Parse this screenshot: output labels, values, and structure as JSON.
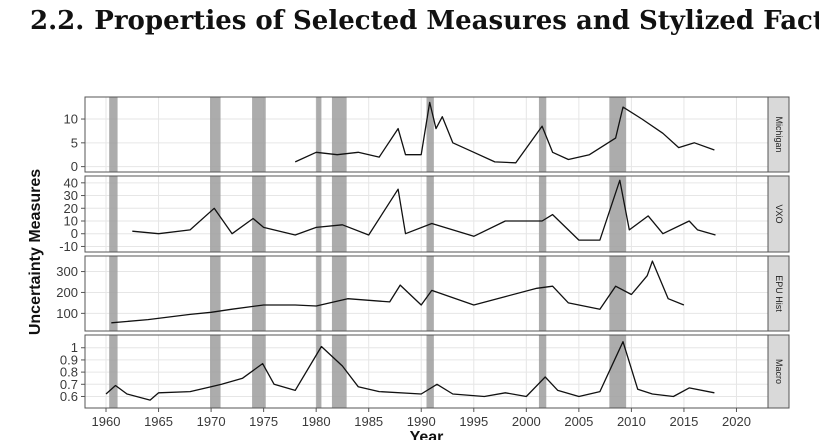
{
  "heading": {
    "number": "2.2.",
    "text": "Properties of Selected Measures and Stylized Facts"
  },
  "chart_data": {
    "type": "line",
    "xlabel": "Year",
    "ylabel": "Uncertainty Measures",
    "xlim": [
      1958,
      2023
    ],
    "x_ticks": [
      1960,
      1965,
      1970,
      1975,
      1980,
      1985,
      1990,
      1995,
      2000,
      2005,
      2010,
      2015,
      2020
    ],
    "recessions": [
      [
        1960.3,
        1961.1
      ],
      [
        1969.9,
        1970.9
      ],
      [
        1973.9,
        1975.2
      ],
      [
        1980.0,
        1980.5
      ],
      [
        1981.5,
        1982.9
      ],
      [
        1990.5,
        1991.2
      ],
      [
        2001.2,
        2001.9
      ],
      [
        2007.9,
        2009.5
      ]
    ],
    "panels": [
      {
        "name": "Michigan",
        "ylim": [
          -0.5,
          14
        ],
        "y_ticks": [
          0,
          5,
          10
        ],
        "x": [
          1978,
          1980,
          1982,
          1984,
          1986,
          1987.8,
          1988.5,
          1990,
          1990.8,
          1991.4,
          1992,
          1993,
          1995,
          1997,
          1999,
          2001.5,
          2002.5,
          2004,
          2006,
          2008.5,
          2009.2,
          2011,
          2013,
          2014.5,
          2016,
          2017.9
        ],
        "values": [
          1,
          3,
          2.5,
          3,
          2,
          8,
          2.5,
          2.5,
          13.5,
          8,
          10.5,
          5,
          3,
          1,
          0.8,
          8.5,
          3,
          1.5,
          2.5,
          6,
          12.5,
          10,
          7,
          4,
          5,
          3.5
        ]
      },
      {
        "name": "VXO",
        "ylim": [
          -12,
          43
        ],
        "y_ticks": [
          -10,
          0,
          10,
          20,
          30,
          40
        ],
        "x": [
          1962.5,
          1965,
          1968,
          1970.3,
          1972,
          1974,
          1975,
          1978,
          1980,
          1982.5,
          1985,
          1987.8,
          1988.5,
          1991,
          1995,
          1998,
          2001.5,
          2002.5,
          2005,
          2007,
          2008.9,
          2009.8,
          2011.6,
          2013,
          2015.5,
          2016.3,
          2018
        ],
        "values": [
          2,
          0,
          3,
          20,
          0,
          12,
          5,
          -1,
          5,
          7,
          -1,
          35,
          0,
          8,
          -2,
          10,
          10,
          15,
          -5,
          -5,
          42,
          3,
          14,
          0,
          10,
          3,
          -1
        ]
      },
      {
        "name": "EPU Hist",
        "ylim": [
          30,
          360
        ],
        "y_ticks": [
          100,
          200,
          300
        ],
        "x": [
          1960.5,
          1964,
          1968,
          1970,
          1972,
          1975,
          1978,
          1980,
          1983,
          1987,
          1988,
          1990,
          1991,
          1995,
          1998,
          2001,
          2002.5,
          2004,
          2007,
          2008.5,
          2010,
          2011.5,
          2012,
          2013.5,
          2015
        ],
        "values": [
          55,
          70,
          95,
          105,
          120,
          140,
          140,
          135,
          170,
          155,
          235,
          140,
          210,
          140,
          180,
          220,
          230,
          150,
          120,
          230,
          190,
          280,
          350,
          170,
          140
        ]
      },
      {
        "name": "Macro",
        "ylim": [
          0.53,
          1.08
        ],
        "y_ticks": [
          0.6,
          0.7,
          0.8,
          0.9,
          1.0
        ],
        "x": [
          1960,
          1960.9,
          1962,
          1964.2,
          1965,
          1968,
          1970,
          1971,
          1973,
          1974.9,
          1976,
          1978,
          1980.5,
          1982.5,
          1984,
          1986,
          1990,
          1991.5,
          1993,
          1996,
          1998,
          2000,
          2001.8,
          2003,
          2005,
          2007,
          2009.2,
          2010.6,
          2012,
          2014,
          2015.5,
          2017.9
        ],
        "values": [
          0.62,
          0.69,
          0.62,
          0.57,
          0.63,
          0.64,
          0.68,
          0.7,
          0.75,
          0.87,
          0.7,
          0.65,
          1.01,
          0.85,
          0.68,
          0.64,
          0.62,
          0.7,
          0.62,
          0.6,
          0.63,
          0.6,
          0.76,
          0.65,
          0.6,
          0.64,
          1.05,
          0.66,
          0.62,
          0.6,
          0.67,
          0.63
        ]
      }
    ]
  }
}
